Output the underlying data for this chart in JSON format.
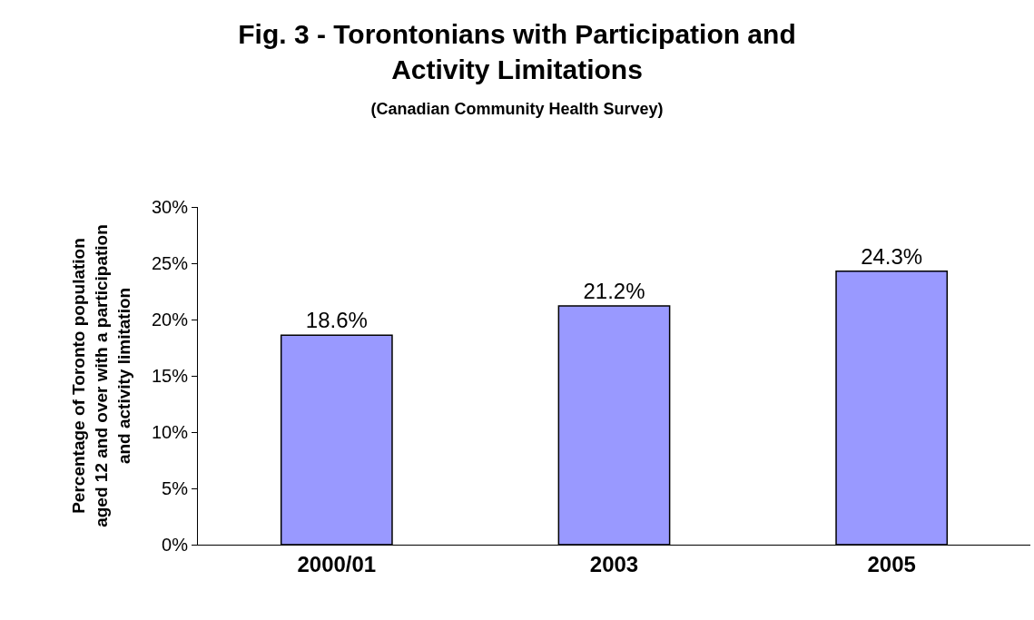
{
  "chart_data": {
    "type": "bar",
    "title": "Fig. 3 - Torontonians with Participation and\nActivity Limitations",
    "subtitle": "(Canadian Community Health Survey)",
    "ylabel": "Percentage of Toronto population\naged 12 and over with a participation\nand activity limitation",
    "categories": [
      "2000/01",
      "2003",
      "2005"
    ],
    "values": [
      18.6,
      21.2,
      24.3
    ],
    "value_labels": [
      "18.6%",
      "21.2%",
      "24.3%"
    ],
    "color": "#9999ff",
    "ylim": [
      0,
      30
    ],
    "yticks": [
      {
        "value": 0,
        "label": "0%"
      },
      {
        "value": 5,
        "label": "5%"
      },
      {
        "value": 10,
        "label": "10%"
      },
      {
        "value": 15,
        "label": "15%"
      },
      {
        "value": 20,
        "label": "20%"
      },
      {
        "value": 25,
        "label": "25%"
      },
      {
        "value": 30,
        "label": "30%"
      }
    ],
    "legend": false
  }
}
